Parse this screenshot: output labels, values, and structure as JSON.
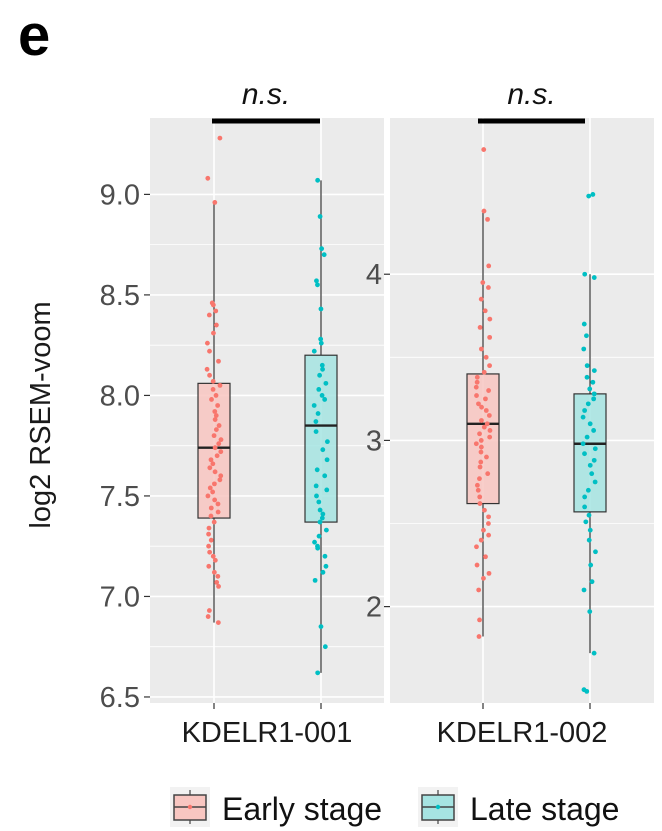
{
  "panel_label": "e",
  "chart_data": [
    {
      "type": "box",
      "ylabel": "log2 RSEM-voom",
      "category": "KDELR1-001",
      "significance": "n.s.",
      "ylim": [
        6.47,
        9.38
      ],
      "yticks": [
        "6.5",
        "7.0",
        "7.5",
        "8.0",
        "8.5",
        "9.0"
      ],
      "yticks_num": [
        6.5,
        7.0,
        7.5,
        8.0,
        8.5,
        9.0
      ],
      "grid": true,
      "series": [
        {
          "name": "Early stage",
          "box": {
            "min": 6.87,
            "q1": 7.39,
            "median": 7.74,
            "q3": 8.06,
            "max": 8.96
          },
          "points": [
            9.28,
            9.08,
            8.96,
            8.46,
            8.45,
            8.42,
            8.4,
            8.35,
            8.31,
            8.26,
            8.22,
            8.17,
            8.13,
            8.1,
            8.07,
            8.05,
            8.03,
            8.0,
            7.98,
            7.95,
            7.92,
            7.9,
            7.88,
            7.85,
            7.83,
            7.8,
            7.78,
            7.76,
            7.74,
            7.72,
            7.7,
            7.68,
            7.66,
            7.64,
            7.62,
            7.6,
            7.58,
            7.56,
            7.54,
            7.52,
            7.5,
            7.48,
            7.46,
            7.44,
            7.42,
            7.4,
            7.37,
            7.34,
            7.31,
            7.28,
            7.25,
            7.22,
            7.2,
            7.18,
            7.15,
            7.12,
            7.1,
            7.07,
            7.05,
            6.93,
            6.9,
            6.87
          ]
        },
        {
          "name": "Late stage",
          "box": {
            "min": 6.62,
            "q1": 7.37,
            "median": 7.85,
            "q3": 8.2,
            "max": 9.07
          },
          "points": [
            9.07,
            8.89,
            8.73,
            8.7,
            8.57,
            8.55,
            8.43,
            8.28,
            8.26,
            8.22,
            8.15,
            8.13,
            8.1,
            8.06,
            8.03,
            8.0,
            7.98,
            7.95,
            7.91,
            7.87,
            7.82,
            7.77,
            7.73,
            7.68,
            7.63,
            7.6,
            7.55,
            7.53,
            7.5,
            7.47,
            7.43,
            7.41,
            7.39,
            7.37,
            7.33,
            7.3,
            7.27,
            7.25,
            7.24,
            7.2,
            7.15,
            7.12,
            7.08,
            6.85,
            6.75,
            6.62
          ]
        }
      ]
    },
    {
      "type": "box",
      "category": "KDELR1-002",
      "significance": "n.s.",
      "ylim": [
        1.42,
        4.94
      ],
      "yticks": [
        "2",
        "3",
        "4"
      ],
      "yticks_num": [
        2,
        3,
        4
      ],
      "grid": true,
      "series": [
        {
          "name": "Early stage",
          "box": {
            "min": 1.82,
            "q1": 2.62,
            "median": 3.1,
            "q3": 3.4,
            "max": 4.38
          },
          "points": [
            4.75,
            4.38,
            4.33,
            4.05,
            3.95,
            3.92,
            3.85,
            3.78,
            3.73,
            3.68,
            3.62,
            3.55,
            3.5,
            3.45,
            3.41,
            3.38,
            3.35,
            3.32,
            3.3,
            3.27,
            3.25,
            3.22,
            3.2,
            3.18,
            3.15,
            3.12,
            3.1,
            3.08,
            3.06,
            3.04,
            3.02,
            3.0,
            2.98,
            2.96,
            2.93,
            2.9,
            2.87,
            2.84,
            2.8,
            2.77,
            2.73,
            2.7,
            2.66,
            2.62,
            2.58,
            2.54,
            2.5,
            2.46,
            2.43,
            2.4,
            2.36,
            2.3,
            2.25,
            2.2,
            2.17,
            2.1,
            1.92,
            1.82
          ]
        },
        {
          "name": "Late stage",
          "box": {
            "min": 1.72,
            "q1": 2.57,
            "median": 2.98,
            "q3": 3.28,
            "max": 4.0
          },
          "points": [
            4.48,
            4.47,
            4.0,
            3.98,
            3.7,
            3.63,
            3.55,
            3.45,
            3.42,
            3.38,
            3.35,
            3.31,
            3.28,
            3.25,
            3.22,
            3.18,
            3.14,
            3.1,
            3.06,
            3.02,
            2.98,
            2.95,
            2.92,
            2.88,
            2.85,
            2.8,
            2.75,
            2.7,
            2.66,
            2.6,
            2.55,
            2.51,
            2.46,
            2.4,
            2.33,
            2.25,
            2.15,
            2.1,
            1.97,
            1.72,
            1.5,
            1.49
          ]
        }
      ]
    }
  ],
  "legend": {
    "position": "bottom",
    "items": [
      {
        "label": "Early stage",
        "fill": "#f8c6c1",
        "stroke": "#444444",
        "point": "#f8766d"
      },
      {
        "label": "Late stage",
        "fill": "#a6e4e2",
        "stroke": "#444444",
        "point": "#00bfc4"
      }
    ]
  },
  "colors": {
    "panel_bg": "#ebebeb",
    "grid": "#ffffff",
    "early_fill": "#f8c6c1",
    "early_point": "#f8766d",
    "late_fill": "#a6e4e2",
    "late_point": "#00bfc4",
    "box_stroke": "#333333"
  }
}
